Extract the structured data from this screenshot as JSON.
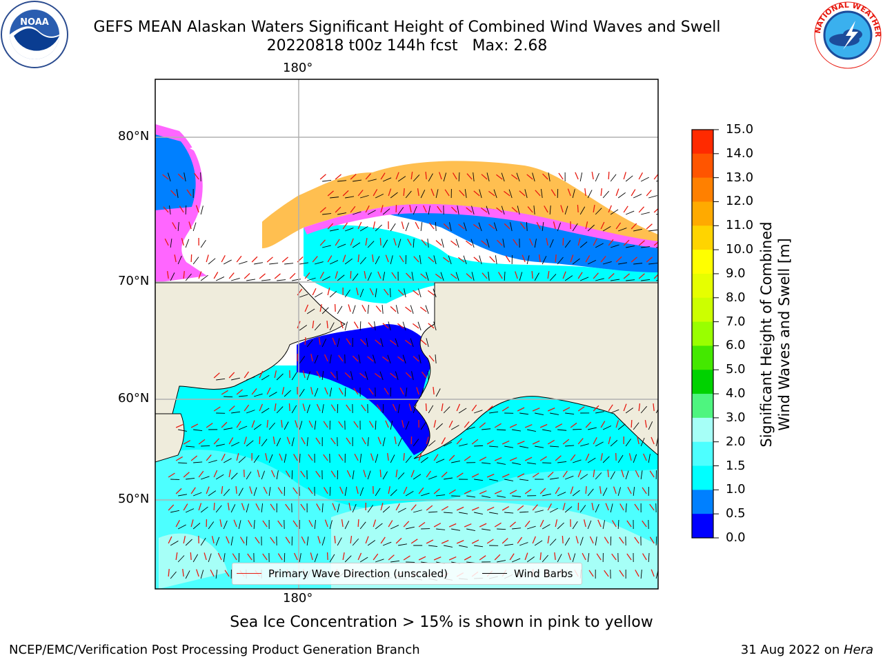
{
  "title_line1": "GEFS MEAN Alaskan Waters Significant Height of Combined Wind Waves and Swell",
  "title_line2": "20220818 t00z 144h fcst   Max: 2.68",
  "map": {
    "lon_label_top": "180°",
    "lon_label_bottom": "180°",
    "lat_labels": [
      "80°N",
      "70°N",
      "60°N",
      "50°N"
    ],
    "land_color": "#efecdc",
    "ocean_low_color": "#0000ff",
    "legend": {
      "wave_label": "Primary Wave Direction (unscaled)",
      "wave_color": "#e8190f",
      "barb_label": "Wind Barbs",
      "barb_color": "#000000"
    }
  },
  "colorbar": {
    "label_line1": "Significant Height of Combined",
    "label_line2": "Wind Waves and Swell [m]",
    "ticks": [
      "15.0",
      "14.0",
      "13.0",
      "12.0",
      "11.0",
      "10.0",
      "9.0",
      "8.0",
      "7.0",
      "6.0",
      "5.0",
      "4.0",
      "3.0",
      "2.0",
      "1.5",
      "1.0",
      "0.5",
      "0.0"
    ],
    "colors": [
      "#ff0000",
      "#ff2a00",
      "#ff5500",
      "#ff8000",
      "#ffaa00",
      "#ffd400",
      "#ffff00",
      "#e6ff00",
      "#ccff00",
      "#99ff00",
      "#44e800",
      "#00d200",
      "#4ef57f",
      "#a6fff7",
      "#4dffff",
      "#00ffff",
      "#0080ff",
      "#0000ff"
    ]
  },
  "ice_note": "Sea Ice Concentration > 15% is shown in pink to yellow",
  "footer_left": "NCEP/EMC/Verification Post Processing Product Generation Branch",
  "footer_right_prefix": "31 Aug 2022 on ",
  "footer_right_host": "Hera",
  "logos": {
    "noaa_text": "NOAA",
    "nws_text": "NATIONAL WEATHER SERVICE"
  }
}
